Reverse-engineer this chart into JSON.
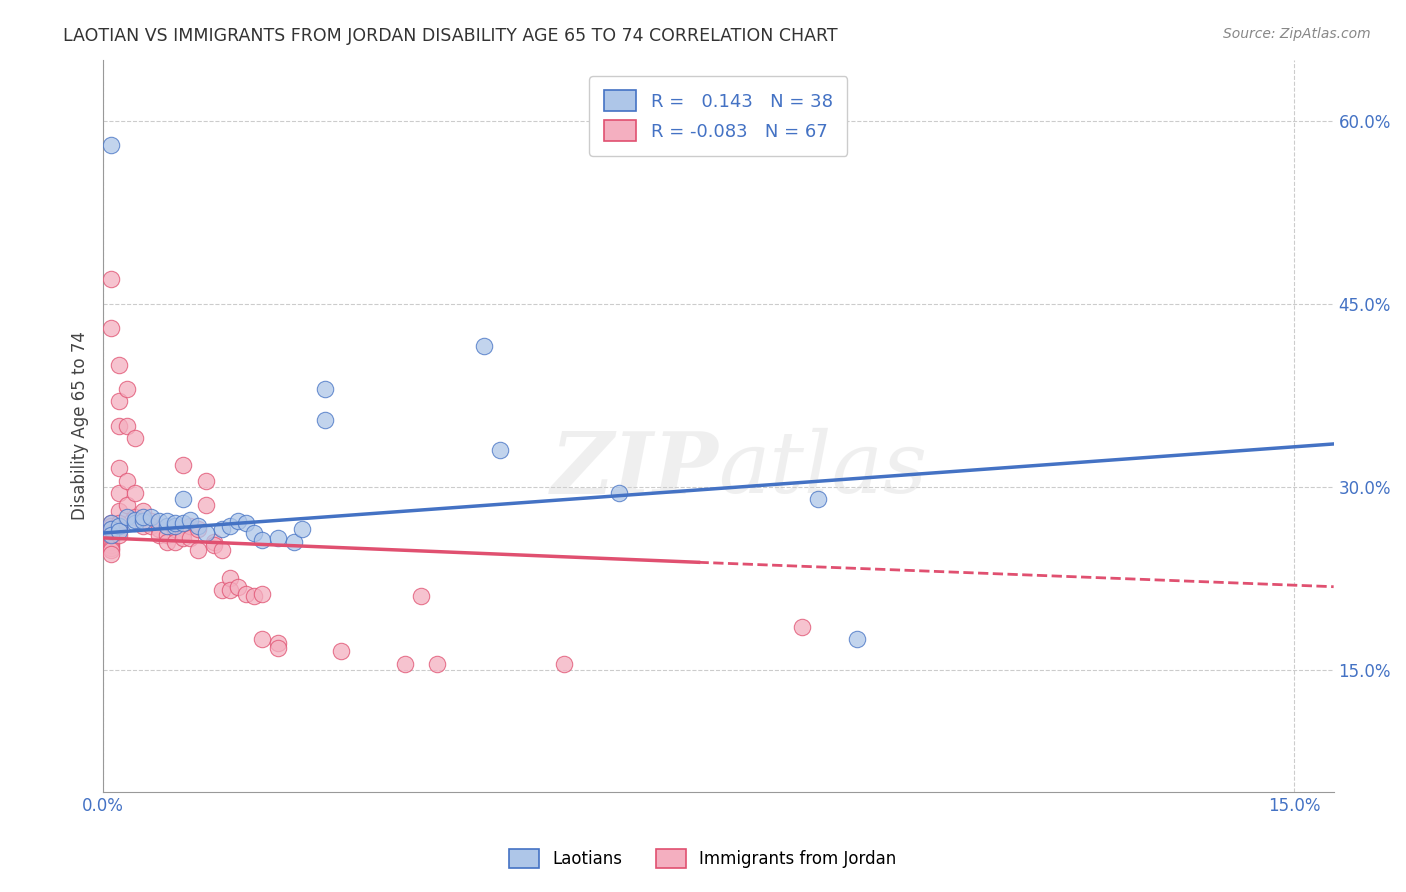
{
  "title": "LAOTIAN VS IMMIGRANTS FROM JORDAN DISABILITY AGE 65 TO 74 CORRELATION CHART",
  "source": "Source: ZipAtlas.com",
  "ylabel_label": "Disability Age 65 to 74",
  "xlim": [
    0.0,
    0.155
  ],
  "ylim": [
    0.05,
    0.65
  ],
  "legend_blue_label": "Laotians",
  "legend_pink_label": "Immigrants from Jordan",
  "r_blue": 0.143,
  "n_blue": 38,
  "r_pink": -0.083,
  "n_pink": 67,
  "blue_color": "#aec6e8",
  "pink_color": "#f4afc0",
  "line_blue_color": "#4472c4",
  "line_pink_color": "#e05070",
  "blue_line_x0": 0.0,
  "blue_line_y0": 0.262,
  "blue_line_x1": 0.155,
  "blue_line_y1": 0.335,
  "pink_line_solid_x0": 0.0,
  "pink_line_solid_y0": 0.258,
  "pink_line_solid_x1": 0.075,
  "pink_line_solid_y1": 0.238,
  "pink_line_dash_x1": 0.155,
  "pink_line_dash_y1": 0.218,
  "blue_scatter": [
    [
      0.001,
      0.58
    ],
    [
      0.001,
      0.27
    ],
    [
      0.001,
      0.265
    ],
    [
      0.001,
      0.26
    ],
    [
      0.002,
      0.268
    ],
    [
      0.002,
      0.264
    ],
    [
      0.003,
      0.275
    ],
    [
      0.004,
      0.27
    ],
    [
      0.004,
      0.273
    ],
    [
      0.005,
      0.272
    ],
    [
      0.005,
      0.275
    ],
    [
      0.006,
      0.275
    ],
    [
      0.007,
      0.272
    ],
    [
      0.008,
      0.268
    ],
    [
      0.008,
      0.272
    ],
    [
      0.009,
      0.268
    ],
    [
      0.009,
      0.27
    ],
    [
      0.01,
      0.29
    ],
    [
      0.01,
      0.27
    ],
    [
      0.011,
      0.273
    ],
    [
      0.012,
      0.268
    ],
    [
      0.013,
      0.262
    ],
    [
      0.015,
      0.265
    ],
    [
      0.016,
      0.268
    ],
    [
      0.017,
      0.272
    ],
    [
      0.018,
      0.27
    ],
    [
      0.019,
      0.262
    ],
    [
      0.02,
      0.256
    ],
    [
      0.022,
      0.258
    ],
    [
      0.024,
      0.255
    ],
    [
      0.025,
      0.265
    ],
    [
      0.028,
      0.355
    ],
    [
      0.028,
      0.38
    ],
    [
      0.048,
      0.415
    ],
    [
      0.05,
      0.33
    ],
    [
      0.065,
      0.295
    ],
    [
      0.09,
      0.29
    ],
    [
      0.095,
      0.175
    ]
  ],
  "pink_scatter": [
    [
      0.001,
      0.27
    ],
    [
      0.001,
      0.268
    ],
    [
      0.001,
      0.265
    ],
    [
      0.001,
      0.262
    ],
    [
      0.001,
      0.26
    ],
    [
      0.001,
      0.258
    ],
    [
      0.001,
      0.255
    ],
    [
      0.001,
      0.252
    ],
    [
      0.001,
      0.25
    ],
    [
      0.001,
      0.248
    ],
    [
      0.001,
      0.245
    ],
    [
      0.001,
      0.47
    ],
    [
      0.001,
      0.43
    ],
    [
      0.002,
      0.4
    ],
    [
      0.002,
      0.37
    ],
    [
      0.002,
      0.35
    ],
    [
      0.002,
      0.315
    ],
    [
      0.002,
      0.295
    ],
    [
      0.002,
      0.28
    ],
    [
      0.002,
      0.27
    ],
    [
      0.002,
      0.265
    ],
    [
      0.002,
      0.26
    ],
    [
      0.003,
      0.38
    ],
    [
      0.003,
      0.35
    ],
    [
      0.003,
      0.305
    ],
    [
      0.003,
      0.285
    ],
    [
      0.004,
      0.34
    ],
    [
      0.004,
      0.295
    ],
    [
      0.004,
      0.275
    ],
    [
      0.005,
      0.28
    ],
    [
      0.005,
      0.268
    ],
    [
      0.006,
      0.272
    ],
    [
      0.006,
      0.268
    ],
    [
      0.007,
      0.265
    ],
    [
      0.007,
      0.26
    ],
    [
      0.008,
      0.26
    ],
    [
      0.008,
      0.255
    ],
    [
      0.009,
      0.265
    ],
    [
      0.009,
      0.255
    ],
    [
      0.01,
      0.262
    ],
    [
      0.01,
      0.258
    ],
    [
      0.01,
      0.318
    ],
    [
      0.011,
      0.268
    ],
    [
      0.011,
      0.258
    ],
    [
      0.012,
      0.265
    ],
    [
      0.012,
      0.248
    ],
    [
      0.013,
      0.305
    ],
    [
      0.013,
      0.285
    ],
    [
      0.014,
      0.255
    ],
    [
      0.014,
      0.252
    ],
    [
      0.015,
      0.248
    ],
    [
      0.015,
      0.215
    ],
    [
      0.016,
      0.225
    ],
    [
      0.016,
      0.215
    ],
    [
      0.017,
      0.218
    ],
    [
      0.018,
      0.212
    ],
    [
      0.019,
      0.21
    ],
    [
      0.02,
      0.212
    ],
    [
      0.02,
      0.175
    ],
    [
      0.022,
      0.172
    ],
    [
      0.022,
      0.168
    ],
    [
      0.03,
      0.165
    ],
    [
      0.038,
      0.155
    ],
    [
      0.04,
      0.21
    ],
    [
      0.042,
      0.155
    ],
    [
      0.058,
      0.155
    ],
    [
      0.088,
      0.185
    ]
  ]
}
